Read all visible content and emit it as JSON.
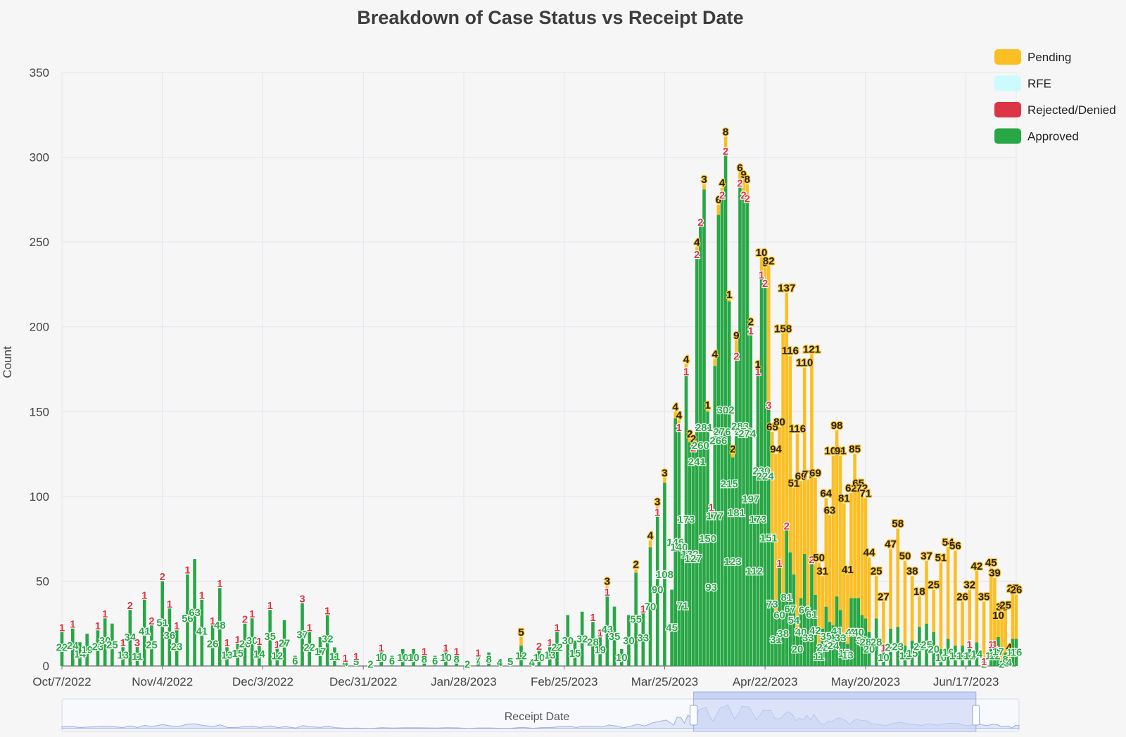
{
  "chart_data": {
    "type": "bar",
    "stacked": true,
    "title": "Breakdown of Case Status vs Receipt Date",
    "xlabel": "",
    "ylabel": "Count",
    "ylim": [
      0,
      350
    ],
    "yticks": [
      0,
      50,
      100,
      150,
      200,
      250,
      300,
      350
    ],
    "grid": true,
    "legend_position": "top-right",
    "date_range": [
      "2022-10-07",
      "2023-06-30"
    ],
    "x_tick_labels": [
      "Oct/7/2022",
      "Nov/4/2022",
      "Dec/3/2022",
      "Dec/31/2022",
      "Jan/28/2023",
      "Feb/25/2023",
      "Mar/25/2023",
      "Apr/22/2023",
      "May/20/2023",
      "Jun/17/2023"
    ],
    "legend": [
      {
        "name": "Pending",
        "color": "#fbbf24"
      },
      {
        "name": "RFE",
        "color": "#ccfbfe"
      },
      {
        "name": "Rejected/Denied",
        "color": "#dc3545"
      },
      {
        "name": "Approved",
        "color": "#28a745"
      }
    ],
    "series_order": [
      "Approved",
      "Rejected/Denied",
      "RFE",
      "Pending"
    ],
    "points": [
      {
        "date": "2022-10-07",
        "approved": 22,
        "denied": 1,
        "pending": 0
      },
      {
        "date": "2022-10-10",
        "approved": 24,
        "denied": 1,
        "pending": 0
      },
      {
        "date": "2022-10-12",
        "approved": 14,
        "denied": 0,
        "pending": 0
      },
      {
        "date": "2022-10-14",
        "approved": 19,
        "denied": 0,
        "pending": 0
      },
      {
        "date": "2022-10-17",
        "approved": 23,
        "denied": 1,
        "pending": 0
      },
      {
        "date": "2022-10-19",
        "approved": 30,
        "denied": 1,
        "pending": 0
      },
      {
        "date": "2022-10-21",
        "approved": 25,
        "denied": 0,
        "pending": 0
      },
      {
        "date": "2022-10-24",
        "approved": 13,
        "denied": 1,
        "pending": 0
      },
      {
        "date": "2022-10-26",
        "approved": 34,
        "denied": 2,
        "pending": 0
      },
      {
        "date": "2022-10-28",
        "approved": 11,
        "denied": 3,
        "pending": 0
      },
      {
        "date": "2022-10-30",
        "approved": 41,
        "denied": 1,
        "pending": 0
      },
      {
        "date": "2022-11-01",
        "approved": 25,
        "denied": 2,
        "pending": 0
      },
      {
        "date": "2022-11-04",
        "approved": 51,
        "denied": 2,
        "pending": 0
      },
      {
        "date": "2022-11-06",
        "approved": 36,
        "denied": 1,
        "pending": 0
      },
      {
        "date": "2022-11-08",
        "approved": 23,
        "denied": 1,
        "pending": 0
      },
      {
        "date": "2022-11-11",
        "approved": 56,
        "denied": 1,
        "pending": 0
      },
      {
        "date": "2022-11-13",
        "approved": 63,
        "denied": 0,
        "pending": 0
      },
      {
        "date": "2022-11-15",
        "approved": 41,
        "denied": 1,
        "pending": 0
      },
      {
        "date": "2022-11-18",
        "approved": 26,
        "denied": 1,
        "pending": 0
      },
      {
        "date": "2022-11-20",
        "approved": 48,
        "denied": 1,
        "pending": 0
      },
      {
        "date": "2022-11-22",
        "approved": 13,
        "denied": 1,
        "pending": 0
      },
      {
        "date": "2022-11-25",
        "approved": 15,
        "denied": 1,
        "pending": 0
      },
      {
        "date": "2022-11-27",
        "approved": 26,
        "denied": 2,
        "pending": 0
      },
      {
        "date": "2022-11-29",
        "approved": 30,
        "denied": 1,
        "pending": 0
      },
      {
        "date": "2022-12-01",
        "approved": 14,
        "denied": 1,
        "pending": 0
      },
      {
        "date": "2022-12-04",
        "approved": 35,
        "denied": 1,
        "pending": 0
      },
      {
        "date": "2022-12-06",
        "approved": 12,
        "denied": 1,
        "pending": 0
      },
      {
        "date": "2022-12-08",
        "approved": 27,
        "denied": 0,
        "pending": 0
      },
      {
        "date": "2022-12-11",
        "approved": 6,
        "denied": 0,
        "pending": 0
      },
      {
        "date": "2022-12-13",
        "approved": 37,
        "denied": 3,
        "pending": 0
      },
      {
        "date": "2022-12-15",
        "approved": 22,
        "denied": 1,
        "pending": 0
      },
      {
        "date": "2022-12-18",
        "approved": 17,
        "denied": 0,
        "pending": 0
      },
      {
        "date": "2022-12-20",
        "approved": 32,
        "denied": 1,
        "pending": 0
      },
      {
        "date": "2022-12-22",
        "approved": 11,
        "denied": 0,
        "pending": 0
      },
      {
        "date": "2022-12-25",
        "approved": 4,
        "denied": 1,
        "pending": 0
      },
      {
        "date": "2022-12-28",
        "approved": 5,
        "denied": 1,
        "pending": 0
      },
      {
        "date": "2023-01-01",
        "approved": 2,
        "denied": 0,
        "pending": 0
      },
      {
        "date": "2023-01-04",
        "approved": 10,
        "denied": 1,
        "pending": 0
      },
      {
        "date": "2023-01-07",
        "approved": 6,
        "denied": 0,
        "pending": 0
      },
      {
        "date": "2023-01-10",
        "approved": 10,
        "denied": 0,
        "pending": 0
      },
      {
        "date": "2023-01-13",
        "approved": 10,
        "denied": 0,
        "pending": 0
      },
      {
        "date": "2023-01-16",
        "approved": 8,
        "denied": 1,
        "pending": 0
      },
      {
        "date": "2023-01-19",
        "approved": 6,
        "denied": 0,
        "pending": 0
      },
      {
        "date": "2023-01-22",
        "approved": 10,
        "denied": 1,
        "pending": 0
      },
      {
        "date": "2023-01-25",
        "approved": 8,
        "denied": 1,
        "pending": 0
      },
      {
        "date": "2023-01-28",
        "approved": 2,
        "denied": 0,
        "pending": 0
      },
      {
        "date": "2023-01-31",
        "approved": 7,
        "denied": 1,
        "pending": 0
      },
      {
        "date": "2023-02-03",
        "approved": 8,
        "denied": 0,
        "pending": 0
      },
      {
        "date": "2023-02-06",
        "approved": 4,
        "denied": 0,
        "pending": 0
      },
      {
        "date": "2023-02-09",
        "approved": 5,
        "denied": 0,
        "pending": 0
      },
      {
        "date": "2023-02-12",
        "approved": 12,
        "denied": 0,
        "pending": 5
      },
      {
        "date": "2023-02-15",
        "approved": 4,
        "denied": 0,
        "pending": 0
      },
      {
        "date": "2023-02-17",
        "approved": 10,
        "denied": 2,
        "pending": 0
      },
      {
        "date": "2023-02-20",
        "approved": 13,
        "denied": 1,
        "pending": 0
      },
      {
        "date": "2023-02-22",
        "approved": 22,
        "denied": 1,
        "pending": 0
      },
      {
        "date": "2023-02-25",
        "approved": 30,
        "denied": 0,
        "pending": 0
      },
      {
        "date": "2023-02-27",
        "approved": 15,
        "denied": 0,
        "pending": 0
      },
      {
        "date": "2023-03-01",
        "approved": 32,
        "denied": 0,
        "pending": 0
      },
      {
        "date": "2023-03-04",
        "approved": 28,
        "denied": 1,
        "pending": 0
      },
      {
        "date": "2023-03-06",
        "approved": 19,
        "denied": 1,
        "pending": 0
      },
      {
        "date": "2023-03-08",
        "approved": 43,
        "denied": 1,
        "pending": 3
      },
      {
        "date": "2023-03-10",
        "approved": 35,
        "denied": 0,
        "pending": 0
      },
      {
        "date": "2023-03-12",
        "approved": 10,
        "denied": 0,
        "pending": 0
      },
      {
        "date": "2023-03-14",
        "approved": 30,
        "denied": 0,
        "pending": 0
      },
      {
        "date": "2023-03-16",
        "approved": 55,
        "denied": 0,
        "pending": 2
      },
      {
        "date": "2023-03-18",
        "approved": 33,
        "denied": 1,
        "pending": 0
      },
      {
        "date": "2023-03-20",
        "approved": 70,
        "denied": 0,
        "pending": 4
      },
      {
        "date": "2023-03-22",
        "approved": 90,
        "denied": 1,
        "pending": 3
      },
      {
        "date": "2023-03-24",
        "approved": 108,
        "denied": 0,
        "pending": 3
      },
      {
        "date": "2023-03-26",
        "approved": 45,
        "denied": 0,
        "pending": 0
      },
      {
        "date": "2023-03-27",
        "approved": 146,
        "denied": 0,
        "pending": 4
      },
      {
        "date": "2023-03-28",
        "approved": 140,
        "denied": 1,
        "pending": 4
      },
      {
        "date": "2023-03-29",
        "approved": 71,
        "denied": 0,
        "pending": 0
      },
      {
        "date": "2023-03-30",
        "approved": 173,
        "denied": 1,
        "pending": 4
      },
      {
        "date": "2023-03-31",
        "approved": 132,
        "denied": 0,
        "pending": 2
      },
      {
        "date": "2023-04-01",
        "approved": 127,
        "denied": 2,
        "pending": 2
      },
      {
        "date": "2023-04-02",
        "approved": 241,
        "denied": 2,
        "pending": 4
      },
      {
        "date": "2023-04-03",
        "approved": 260,
        "denied": 2,
        "pending": 0
      },
      {
        "date": "2023-04-04",
        "approved": 281,
        "denied": 0,
        "pending": 3
      },
      {
        "date": "2023-04-05",
        "approved": 150,
        "denied": 0,
        "pending": 1
      },
      {
        "date": "2023-04-06",
        "approved": 93,
        "denied": 1,
        "pending": 0
      },
      {
        "date": "2023-04-07",
        "approved": 177,
        "denied": 0,
        "pending": 4
      },
      {
        "date": "2023-04-08",
        "approved": 266,
        "denied": 0,
        "pending": 6
      },
      {
        "date": "2023-04-09",
        "approved": 276,
        "denied": 2,
        "pending": 4
      },
      {
        "date": "2023-04-10",
        "approved": 302,
        "denied": 2,
        "pending": 8
      },
      {
        "date": "2023-04-11",
        "approved": 215,
        "denied": 0,
        "pending": 1
      },
      {
        "date": "2023-04-12",
        "approved": 123,
        "denied": 0,
        "pending": 2
      },
      {
        "date": "2023-04-13",
        "approved": 181,
        "denied": 2,
        "pending": 9
      },
      {
        "date": "2023-04-14",
        "approved": 283,
        "denied": 2,
        "pending": 6
      },
      {
        "date": "2023-04-15",
        "approved": 276,
        "denied": 2,
        "pending": 9
      },
      {
        "date": "2023-04-16",
        "approved": 274,
        "denied": 2,
        "pending": 8
      },
      {
        "date": "2023-04-17",
        "approved": 197,
        "denied": 1,
        "pending": 2
      },
      {
        "date": "2023-04-18",
        "approved": 112,
        "denied": 0,
        "pending": 0
      },
      {
        "date": "2023-04-19",
        "approved": 173,
        "denied": 1,
        "pending": 1
      },
      {
        "date": "2023-04-20",
        "approved": 230,
        "denied": 1,
        "pending": 10
      },
      {
        "date": "2023-04-21",
        "approved": 224,
        "denied": 2,
        "pending": 9
      },
      {
        "date": "2023-04-22",
        "approved": 151,
        "denied": 3,
        "pending": 82
      },
      {
        "date": "2023-04-23",
        "approved": 73,
        "denied": 0,
        "pending": 65
      },
      {
        "date": "2023-04-24",
        "approved": 31,
        "denied": 0,
        "pending": 94
      },
      {
        "date": "2023-04-25",
        "approved": 60,
        "denied": 1,
        "pending": 80
      },
      {
        "date": "2023-04-26",
        "approved": 38,
        "denied": 0,
        "pending": 158
      },
      {
        "date": "2023-04-27",
        "approved": 81,
        "denied": 2,
        "pending": 137
      },
      {
        "date": "2023-04-28",
        "approved": 67,
        "denied": 0,
        "pending": 116
      },
      {
        "date": "2023-04-29",
        "approved": 54,
        "denied": 0,
        "pending": 51
      },
      {
        "date": "2023-04-30",
        "approved": 20,
        "denied": 1,
        "pending": 116
      },
      {
        "date": "2023-05-01",
        "approved": 40,
        "denied": 0,
        "pending": 69
      },
      {
        "date": "2023-05-02",
        "approved": 66,
        "denied": 0,
        "pending": 110
      },
      {
        "date": "2023-05-03",
        "approved": 33,
        "denied": 0,
        "pending": 77
      },
      {
        "date": "2023-05-04",
        "approved": 61,
        "denied": 2,
        "pending": 121
      },
      {
        "date": "2023-05-05",
        "approved": 42,
        "denied": 0,
        "pending": 69
      },
      {
        "date": "2023-05-06",
        "approved": 11,
        "denied": 0,
        "pending": 50
      },
      {
        "date": "2023-05-07",
        "approved": 22,
        "denied": 0,
        "pending": 31
      },
      {
        "date": "2023-05-08",
        "approved": 35,
        "denied": 0,
        "pending": 64
      },
      {
        "date": "2023-05-09",
        "approved": 26,
        "denied": 0,
        "pending": 63
      },
      {
        "date": "2023-05-10",
        "approved": 24,
        "denied": 0,
        "pending": 100
      },
      {
        "date": "2023-05-11",
        "approved": 41,
        "denied": 0,
        "pending": 98
      },
      {
        "date": "2023-05-12",
        "approved": 33,
        "denied": 0,
        "pending": 91
      },
      {
        "date": "2023-05-13",
        "approved": 15,
        "denied": 0,
        "pending": 81
      },
      {
        "date": "2023-05-14",
        "approved": 13,
        "denied": 0,
        "pending": 41
      },
      {
        "date": "2023-05-15",
        "approved": 40,
        "denied": 0,
        "pending": 62
      },
      {
        "date": "2023-05-16",
        "approved": 40,
        "denied": 0,
        "pending": 85
      },
      {
        "date": "2023-05-17",
        "approved": 40,
        "denied": 0,
        "pending": 65
      },
      {
        "date": "2023-05-18",
        "approved": 30,
        "denied": 0,
        "pending": 72
      },
      {
        "date": "2023-05-19",
        "approved": 28,
        "denied": 0,
        "pending": 71
      },
      {
        "date": "2023-05-20",
        "approved": 20,
        "denied": 0,
        "pending": 44
      },
      {
        "date": "2023-05-22",
        "approved": 28,
        "denied": 0,
        "pending": 25
      },
      {
        "date": "2023-05-24",
        "approved": 10,
        "denied": 1,
        "pending": 27
      },
      {
        "date": "2023-05-26",
        "approved": 22,
        "denied": 0,
        "pending": 47
      },
      {
        "date": "2023-05-28",
        "approved": 23,
        "denied": 0,
        "pending": 58
      },
      {
        "date": "2023-05-30",
        "approved": 12,
        "denied": 0,
        "pending": 50
      },
      {
        "date": "2023-06-01",
        "approved": 15,
        "denied": 0,
        "pending": 38
      },
      {
        "date": "2023-06-03",
        "approved": 23,
        "denied": 0,
        "pending": 18
      },
      {
        "date": "2023-06-05",
        "approved": 25,
        "denied": 0,
        "pending": 37
      },
      {
        "date": "2023-06-07",
        "approved": 20,
        "denied": 0,
        "pending": 25
      },
      {
        "date": "2023-06-09",
        "approved": 10,
        "denied": 0,
        "pending": 51
      },
      {
        "date": "2023-06-11",
        "approved": 16,
        "denied": 0,
        "pending": 54
      },
      {
        "date": "2023-06-13",
        "approved": 12,
        "denied": 0,
        "pending": 56
      },
      {
        "date": "2023-06-15",
        "approved": 12,
        "denied": 0,
        "pending": 26
      },
      {
        "date": "2023-06-17",
        "approved": 12,
        "denied": 1,
        "pending": 32
      },
      {
        "date": "2023-06-19",
        "approved": 14,
        "denied": 0,
        "pending": 42
      },
      {
        "date": "2023-06-21",
        "approved": 2,
        "denied": 1,
        "pending": 35
      },
      {
        "date": "2023-06-23",
        "approved": 12,
        "denied": 1,
        "pending": 45
      },
      {
        "date": "2023-06-24",
        "approved": 12,
        "denied": 1,
        "pending": 39
      },
      {
        "date": "2023-06-25",
        "approved": 17,
        "denied": 0,
        "pending": 10
      },
      {
        "date": "2023-06-26",
        "approved": 2,
        "denied": 0,
        "pending": 30
      },
      {
        "date": "2023-06-27",
        "approved": 8,
        "denied": 0,
        "pending": 25
      },
      {
        "date": "2023-06-28",
        "approved": 4,
        "denied": 0,
        "pending": 4
      },
      {
        "date": "2023-06-29",
        "approved": 16,
        "denied": 0,
        "pending": 27
      },
      {
        "date": "2023-06-30",
        "approved": 16,
        "denied": 0,
        "pending": 26
      }
    ]
  },
  "datazoom": {
    "label": "Receipt Date",
    "range_start": 0.66,
    "range_end": 0.955
  }
}
